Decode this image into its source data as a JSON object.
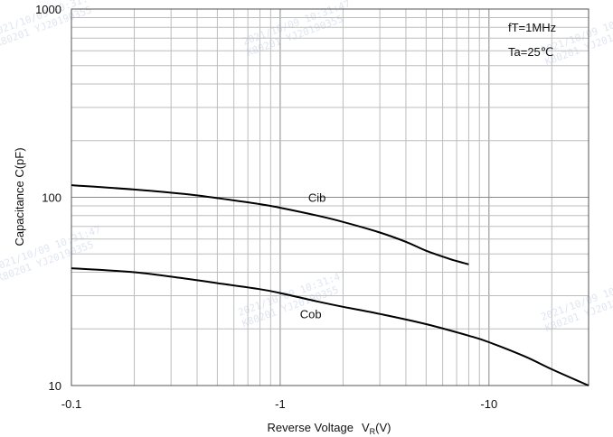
{
  "chart_data": {
    "type": "line",
    "xlabel": "Reverse Voltage",
    "xlabel_symbol": "V",
    "xlabel_subscript": "R",
    "xlabel_unit": "(V)",
    "ylabel": "Capacitance  C(pF)",
    "x_scale": "log",
    "y_scale": "log",
    "xlim": [
      0.1,
      30
    ],
    "ylim": [
      10,
      1000
    ],
    "x_ticks": [
      {
        "value": 0.1,
        "label": "-0.1"
      },
      {
        "value": 1,
        "label": "-1"
      },
      {
        "value": 10,
        "label": "-10"
      }
    ],
    "y_ticks": [
      {
        "value": 10,
        "label": "10"
      },
      {
        "value": 100,
        "label": "100"
      },
      {
        "value": 1000,
        "label": "1000"
      }
    ],
    "grid": true,
    "conditions": [
      "fT=1MHz",
      "Ta=25℃"
    ],
    "series": [
      {
        "name": "Cib",
        "x": [
          0.1,
          0.2,
          0.35,
          0.5,
          0.8,
          1.0,
          1.5,
          2.0,
          3.0,
          4.0,
          5.0,
          6.5,
          8.0
        ],
        "y": [
          116,
          110,
          104,
          99,
          92,
          88,
          80,
          74,
          65,
          58,
          52,
          47,
          44
        ]
      },
      {
        "name": "Cob",
        "x": [
          0.1,
          0.2,
          0.35,
          0.5,
          0.8,
          1.0,
          1.5,
          2.0,
          3.0,
          5.0,
          8.0,
          10.0,
          15.0,
          20.0,
          30.0
        ],
        "y": [
          42,
          40,
          37,
          35,
          32.5,
          31,
          28,
          26.2,
          24,
          21.2,
          18.4,
          17,
          14.2,
          12.2,
          10
        ]
      }
    ],
    "series_label_positions": [
      {
        "name": "Cib",
        "x": 1.5,
        "y": 100
      },
      {
        "name": "Cob",
        "x": 1.4,
        "y": 24
      }
    ],
    "watermarks": [
      "2021/10/09 10:31:47",
      "K80201 YJ20190355"
    ]
  }
}
